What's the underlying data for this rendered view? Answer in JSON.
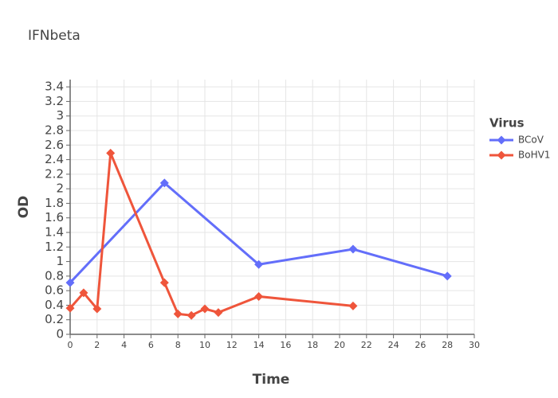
{
  "chart_data": {
    "type": "line",
    "title": "IFNbeta",
    "x_label": "Time",
    "y_label": "OD",
    "legend_title": "Virus",
    "legend_position": "right",
    "xlim": [
      0,
      30
    ],
    "xticks": [
      0,
      2,
      4,
      6,
      8,
      10,
      12,
      14,
      16,
      18,
      20,
      22,
      24,
      26,
      28,
      30
    ],
    "ylim": [
      0,
      3.5
    ],
    "yticks": [
      0,
      0.2,
      0.4,
      0.6,
      0.8,
      1,
      1.2,
      1.4,
      1.6,
      1.8,
      2,
      2.2,
      2.4,
      2.6,
      2.8,
      3,
      3.2,
      3.4
    ],
    "grid": true,
    "series": [
      {
        "name": "BCoV",
        "color": "#636efa",
        "x": [
          0,
          7,
          14,
          21,
          28
        ],
        "values": [
          0.71,
          2.08,
          0.96,
          1.17,
          0.8
        ]
      },
      {
        "name": "BoHV1",
        "color": "#ef553b",
        "x": [
          0,
          1,
          2,
          3,
          7,
          8,
          9,
          10,
          11,
          14,
          21
        ],
        "values": [
          0.36,
          0.57,
          0.35,
          2.49,
          0.71,
          0.28,
          0.26,
          0.35,
          0.3,
          0.52,
          0.39
        ]
      }
    ]
  }
}
